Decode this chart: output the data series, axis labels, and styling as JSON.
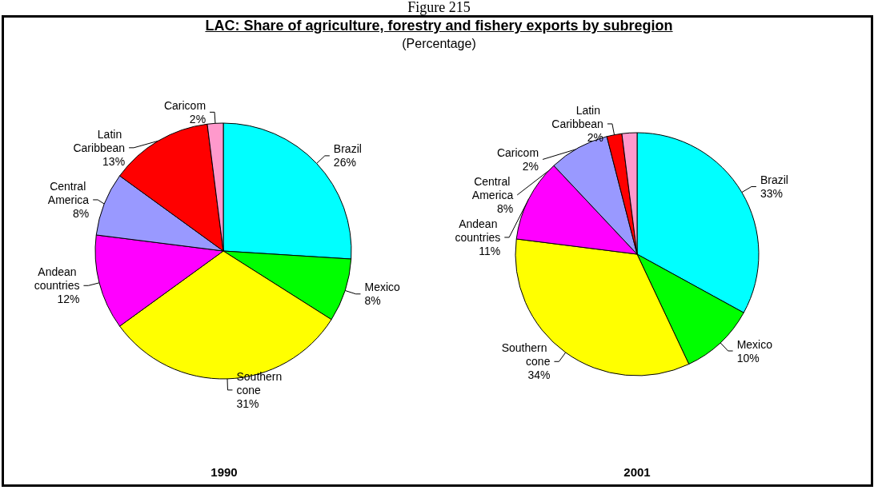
{
  "chart_data": [
    {
      "type": "pie",
      "title": "LAC:  Share of agriculture, forestry and fishery exports by subregion",
      "subtitle": "(Percentage)",
      "annotations": [
        "Figure 215"
      ],
      "xlabel": "1990",
      "categories": [
        "Brazil",
        "Mexico",
        "Southern cone",
        "Andean countries",
        "Central America",
        "Latin Caribbean",
        "Caricom"
      ],
      "values": [
        26,
        8,
        31,
        12,
        8,
        13,
        2
      ],
      "value_labels": [
        "26%",
        "8%",
        "31%",
        "12%",
        "8%",
        "13%",
        "2%"
      ],
      "colors": [
        "#00ffff",
        "#00ff00",
        "#ffff00",
        "#ff00ff",
        "#9999ff",
        "#ff0000",
        "#ff99cc"
      ],
      "legend": false
    },
    {
      "type": "pie",
      "xlabel": "2001",
      "categories": [
        "Brazil",
        "Mexico",
        "Southern cone",
        "Andean countries",
        "Central America",
        "Latin Caribbean",
        "Caricom"
      ],
      "values": [
        33,
        10,
        34,
        11,
        8,
        2,
        2
      ],
      "value_labels": [
        "33%",
        "10%",
        "34%",
        "11%",
        "8%",
        "2%",
        "2%"
      ],
      "colors": [
        "#00ffff",
        "#00ff00",
        "#ffff00",
        "#ff00ff",
        "#9999ff",
        "#ff0000",
        "#ff99cc"
      ],
      "legend": false
    }
  ]
}
